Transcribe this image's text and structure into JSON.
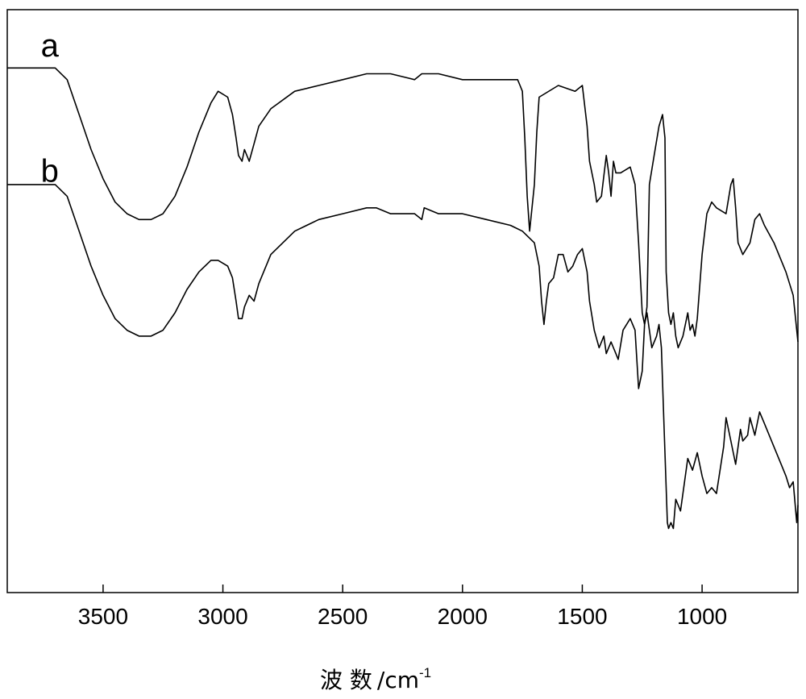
{
  "chart_data": {
    "type": "line",
    "xlabel": "波 数",
    "xlabel_unit": "/cm",
    "xlabel_unit_exp": "-1",
    "xlim": [
      3900,
      600
    ],
    "x_reversed": true,
    "y_ticks_shown": false,
    "xticks": [
      3500,
      3000,
      2500,
      2000,
      1500,
      1000
    ],
    "xtick_labels": [
      "3500",
      "3000",
      "2500",
      "2000",
      "1500",
      "1000"
    ],
    "line_color": "#000000",
    "grid": false,
    "legend": "none",
    "series": [
      {
        "name": "a",
        "label_anchor_x": 3760,
        "label_anchor_y": 0.92,
        "x": [
          3900,
          3800,
          3700,
          3650,
          3600,
          3550,
          3500,
          3450,
          3400,
          3350,
          3300,
          3250,
          3200,
          3150,
          3100,
          3050,
          3020,
          2980,
          2960,
          2945,
          2935,
          2920,
          2910,
          2890,
          2870,
          2850,
          2800,
          2700,
          2600,
          2500,
          2400,
          2360,
          2300,
          2200,
          2170,
          2160,
          2100,
          2000,
          1900,
          1800,
          1770,
          1760,
          1750,
          1740,
          1730,
          1720,
          1700,
          1690,
          1680,
          1600,
          1530,
          1500,
          1480,
          1470,
          1450,
          1440,
          1420,
          1400,
          1390,
          1380,
          1370,
          1360,
          1340,
          1300,
          1280,
          1265,
          1250,
          1240,
          1230,
          1220,
          1200,
          1180,
          1165,
          1155,
          1150,
          1140,
          1130,
          1120,
          1110,
          1100,
          1080,
          1060,
          1050,
          1040,
          1030,
          1020,
          1000,
          980,
          960,
          940,
          900,
          880,
          870,
          860,
          850,
          830,
          800,
          780,
          760,
          740,
          700,
          650,
          620,
          600
        ],
        "y": [
          0.9,
          0.9,
          0.9,
          0.88,
          0.82,
          0.76,
          0.71,
          0.67,
          0.65,
          0.64,
          0.64,
          0.65,
          0.68,
          0.73,
          0.79,
          0.84,
          0.86,
          0.85,
          0.82,
          0.78,
          0.75,
          0.74,
          0.76,
          0.74,
          0.77,
          0.8,
          0.83,
          0.86,
          0.87,
          0.88,
          0.89,
          0.89,
          0.89,
          0.88,
          0.89,
          0.89,
          0.89,
          0.88,
          0.88,
          0.88,
          0.88,
          0.87,
          0.86,
          0.78,
          0.68,
          0.62,
          0.7,
          0.79,
          0.85,
          0.87,
          0.86,
          0.87,
          0.8,
          0.74,
          0.7,
          0.67,
          0.68,
          0.75,
          0.72,
          0.68,
          0.74,
          0.72,
          0.72,
          0.73,
          0.7,
          0.6,
          0.48,
          0.46,
          0.49,
          0.7,
          0.75,
          0.8,
          0.82,
          0.78,
          0.55,
          0.48,
          0.46,
          0.48,
          0.44,
          0.42,
          0.44,
          0.48,
          0.45,
          0.46,
          0.44,
          0.47,
          0.58,
          0.65,
          0.67,
          0.66,
          0.65,
          0.7,
          0.71,
          0.66,
          0.6,
          0.58,
          0.6,
          0.64,
          0.65,
          0.63,
          0.6,
          0.55,
          0.51,
          0.43
        ]
      },
      {
        "name": "b",
        "label_anchor_x": 3760,
        "label_anchor_y": 0.705,
        "x": [
          3900,
          3800,
          3700,
          3650,
          3600,
          3550,
          3500,
          3450,
          3400,
          3350,
          3300,
          3250,
          3200,
          3150,
          3100,
          3050,
          3020,
          2980,
          2960,
          2945,
          2935,
          2920,
          2910,
          2890,
          2870,
          2850,
          2800,
          2700,
          2600,
          2500,
          2400,
          2360,
          2300,
          2200,
          2170,
          2160,
          2100,
          2000,
          1900,
          1800,
          1750,
          1700,
          1680,
          1670,
          1660,
          1650,
          1640,
          1620,
          1600,
          1580,
          1560,
          1540,
          1520,
          1500,
          1480,
          1470,
          1450,
          1430,
          1410,
          1400,
          1380,
          1360,
          1350,
          1330,
          1300,
          1280,
          1265,
          1250,
          1240,
          1230,
          1210,
          1190,
          1180,
          1170,
          1160,
          1150,
          1145,
          1140,
          1130,
          1120,
          1110,
          1100,
          1090,
          1070,
          1060,
          1040,
          1020,
          1000,
          980,
          960,
          940,
          910,
          900,
          880,
          860,
          840,
          830,
          810,
          800,
          780,
          760,
          740,
          700,
          670,
          650,
          635,
          620,
          605,
          600
        ],
        "y": [
          0.7,
          0.7,
          0.7,
          0.68,
          0.62,
          0.56,
          0.51,
          0.47,
          0.45,
          0.44,
          0.44,
          0.45,
          0.48,
          0.52,
          0.55,
          0.57,
          0.57,
          0.56,
          0.54,
          0.5,
          0.47,
          0.47,
          0.49,
          0.51,
          0.5,
          0.53,
          0.58,
          0.62,
          0.64,
          0.65,
          0.66,
          0.66,
          0.65,
          0.65,
          0.64,
          0.66,
          0.65,
          0.65,
          0.64,
          0.63,
          0.62,
          0.6,
          0.56,
          0.5,
          0.46,
          0.5,
          0.53,
          0.54,
          0.58,
          0.58,
          0.55,
          0.56,
          0.58,
          0.59,
          0.55,
          0.5,
          0.45,
          0.42,
          0.44,
          0.41,
          0.43,
          0.41,
          0.4,
          0.45,
          0.47,
          0.45,
          0.35,
          0.38,
          0.46,
          0.48,
          0.42,
          0.44,
          0.46,
          0.42,
          0.3,
          0.18,
          0.12,
          0.11,
          0.12,
          0.11,
          0.16,
          0.15,
          0.14,
          0.2,
          0.23,
          0.21,
          0.24,
          0.2,
          0.17,
          0.18,
          0.17,
          0.25,
          0.3,
          0.26,
          0.22,
          0.28,
          0.26,
          0.27,
          0.3,
          0.27,
          0.31,
          0.29,
          0.25,
          0.22,
          0.2,
          0.18,
          0.19,
          0.12,
          0.15
        ]
      }
    ]
  }
}
